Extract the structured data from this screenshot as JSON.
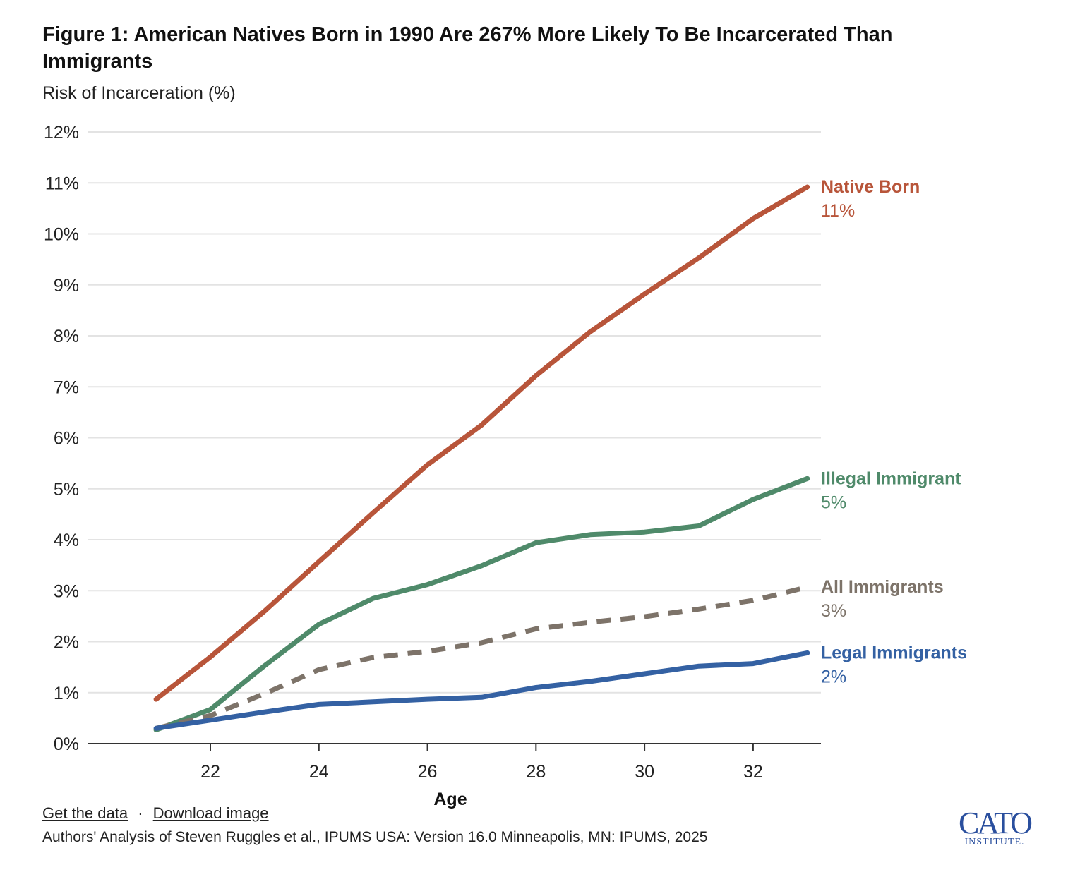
{
  "header": {
    "title": "Figure 1: American Natives Born in 1990 Are 267% More Likely To Be Incarcerated Than Immigrants",
    "subtitle": "Risk of Incarceration (%)"
  },
  "chart_data": {
    "type": "line",
    "title": "Figure 1: American Natives Born in 1990 Are 267% More Likely To Be Incarcerated Than Immigrants",
    "ylabel": "Risk of Incarceration (%)",
    "xlabel": "Age",
    "x": [
      21,
      22,
      23,
      24,
      25,
      26,
      27,
      28,
      29,
      30,
      31,
      32,
      33
    ],
    "xlim": [
      19.75,
      33.25
    ],
    "ylim": [
      0,
      12
    ],
    "x_ticks": [
      22,
      24,
      26,
      28,
      30,
      32
    ],
    "y_ticks": [
      0,
      1,
      2,
      3,
      4,
      5,
      6,
      7,
      8,
      9,
      10,
      11,
      12
    ],
    "y_tick_labels": [
      "0%",
      "1%",
      "2%",
      "3%",
      "4%",
      "5%",
      "6%",
      "7%",
      "8%",
      "9%",
      "10%",
      "11%",
      "12%"
    ],
    "grid": "horizontal",
    "series": [
      {
        "name": "Native Born",
        "end_label": "11%",
        "color": "#b8553a",
        "style": "solid",
        "values": [
          0.87,
          1.7,
          2.6,
          3.57,
          4.53,
          5.47,
          6.25,
          7.22,
          8.08,
          8.82,
          9.53,
          10.3,
          10.92
        ]
      },
      {
        "name": "Illegal Immigrant",
        "end_label": "5%",
        "color": "#4f8a6a",
        "style": "solid",
        "values": [
          0.27,
          0.67,
          1.53,
          2.34,
          2.85,
          3.12,
          3.49,
          3.94,
          4.1,
          4.15,
          4.27,
          4.79,
          5.2
        ]
      },
      {
        "name": "All Immigrants",
        "end_label": "3%",
        "color": "#7d7369",
        "style": "dashed",
        "values": [
          0.3,
          0.55,
          0.98,
          1.45,
          1.69,
          1.81,
          1.98,
          2.25,
          2.38,
          2.49,
          2.64,
          2.81,
          3.07
        ]
      },
      {
        "name": "Legal Immigrants",
        "end_label": "2%",
        "color": "#3461a3",
        "style": "solid",
        "values": [
          0.3,
          0.46,
          0.62,
          0.77,
          0.82,
          0.87,
          0.91,
          1.1,
          1.22,
          1.37,
          1.52,
          1.57,
          1.78
        ]
      }
    ]
  },
  "footer": {
    "get_data": "Get the data",
    "separator": "·",
    "download": "Download image",
    "source": "Authors' Analysis of Steven Ruggles et al., IPUMS USA: Version 16.0 Minneapolis, MN: IPUMS, 2025",
    "logo_main": "CATO",
    "logo_sub": "INSTITUTE."
  },
  "colors": {
    "grid": "#e3e3e3",
    "axis": "#333333",
    "logo": "#2a4f9e"
  }
}
